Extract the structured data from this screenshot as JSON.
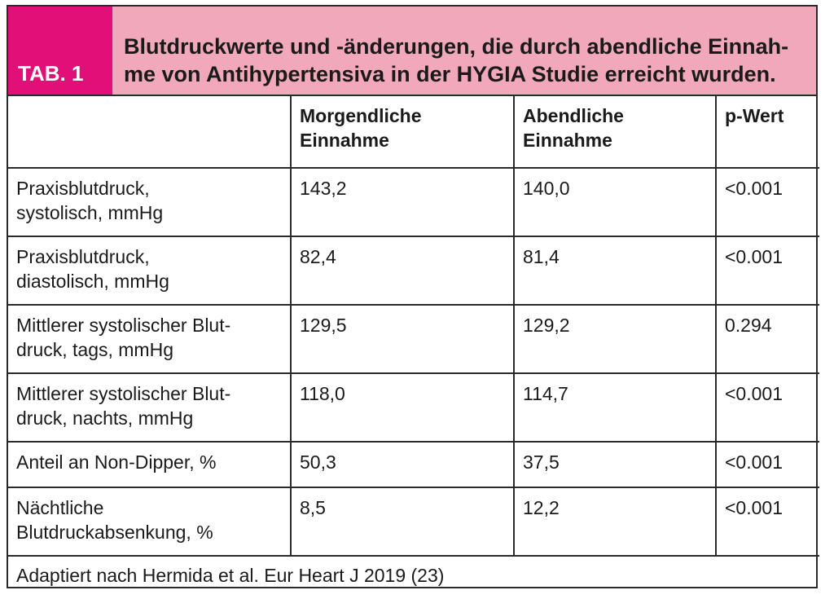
{
  "header": {
    "tab_label": "TAB. 1",
    "title": "Blutdruckwerte und -änderungen, die durch abendliche Einnah-\nme von Antihypertensiva in der HYGIA Studie erreicht wurden."
  },
  "table": {
    "columns": [
      "",
      "Morgendliche\nEinnahme",
      "Abendliche\nEinnahme",
      "p-Wert"
    ],
    "rows": [
      [
        "Praxisblutdruck,\nsystolisch, mmHg",
        "143,2",
        "140,0",
        "<0.001"
      ],
      [
        "Praxisblutdruck,\ndiastolisch, mmHg",
        "82,4",
        "81,4",
        "<0.001"
      ],
      [
        "Mittlerer systolischer Blut-\ndruck, tags, mmHg",
        "129,5",
        "129,2",
        "0.294"
      ],
      [
        "Mittlerer systolischer Blut-\ndruck, nachts, mmHg",
        "118,0",
        "114,7",
        "<0.001"
      ],
      [
        "Anteil an Non-Dipper, %",
        "50,3",
        "37,5",
        "<0.001"
      ],
      [
        "Nächtliche\nBlutdruckabsenkung, %",
        "8,5",
        "12,2",
        "<0.001"
      ]
    ],
    "footnote": "Adaptiert nach Hermida et al. Eur Heart J 2019 (23)"
  },
  "colors": {
    "tab_magenta": "#e20f79",
    "title_pink": "#f2a8bb",
    "border": "#2a2a2a"
  }
}
